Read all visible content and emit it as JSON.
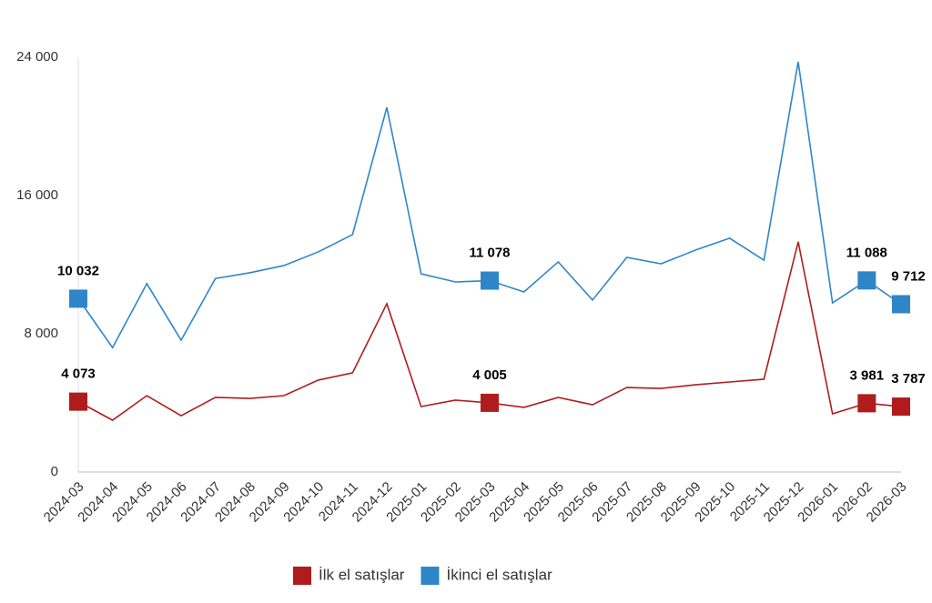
{
  "chart_data": {
    "type": "line",
    "categories": [
      "2024-03",
      "2024-04",
      "2024-05",
      "2024-06",
      "2024-07",
      "2024-08",
      "2024-09",
      "2024-10",
      "2024-11",
      "2024-12",
      "2025-01",
      "2025-02",
      "2025-03",
      "2025-04",
      "2025-05",
      "2025-06",
      "2025-07",
      "2025-08",
      "2025-09",
      "2025-10",
      "2025-11",
      "2025-12",
      "2026-01",
      "2026-02",
      "2026-03"
    ],
    "series": [
      {
        "name": "İlk el satışlar",
        "color": "#b01c1c",
        "values": [
          4073,
          3000,
          4420,
          3260,
          4320,
          4260,
          4420,
          5320,
          5740,
          9740,
          3790,
          4160,
          4005,
          3740,
          4320,
          3890,
          4890,
          4840,
          5050,
          5210,
          5370,
          13320,
          3370,
          3981,
          3787
        ],
        "value_labels": [
          "4 073",
          null,
          null,
          null,
          null,
          null,
          null,
          null,
          null,
          null,
          null,
          null,
          "4 005",
          null,
          null,
          null,
          null,
          null,
          null,
          null,
          null,
          null,
          null,
          "3 981",
          "3 787"
        ]
      },
      {
        "name": "İkinci el satışlar",
        "color": "#2e86c8",
        "values": [
          10032,
          7200,
          10900,
          7630,
          11200,
          11530,
          11950,
          12740,
          13740,
          21100,
          11470,
          11000,
          11078,
          10420,
          12160,
          9950,
          12420,
          12050,
          12840,
          13530,
          12260,
          23740,
          9790,
          11088,
          9712
        ],
        "value_labels": [
          "10 032",
          null,
          null,
          null,
          null,
          null,
          null,
          null,
          null,
          null,
          null,
          null,
          "11 078",
          null,
          null,
          null,
          null,
          null,
          null,
          null,
          null,
          null,
          null,
          "11 088",
          "9 712"
        ]
      }
    ],
    "ylim": [
      0,
      24000
    ],
    "yticks": [
      0,
      {
        "value": 8000,
        "label": "8 000"
      },
      {
        "value": 16000,
        "label": "16 000"
      },
      {
        "value": 24000,
        "label": "24 000"
      }
    ],
    "grid": false,
    "legend": "bottom"
  }
}
